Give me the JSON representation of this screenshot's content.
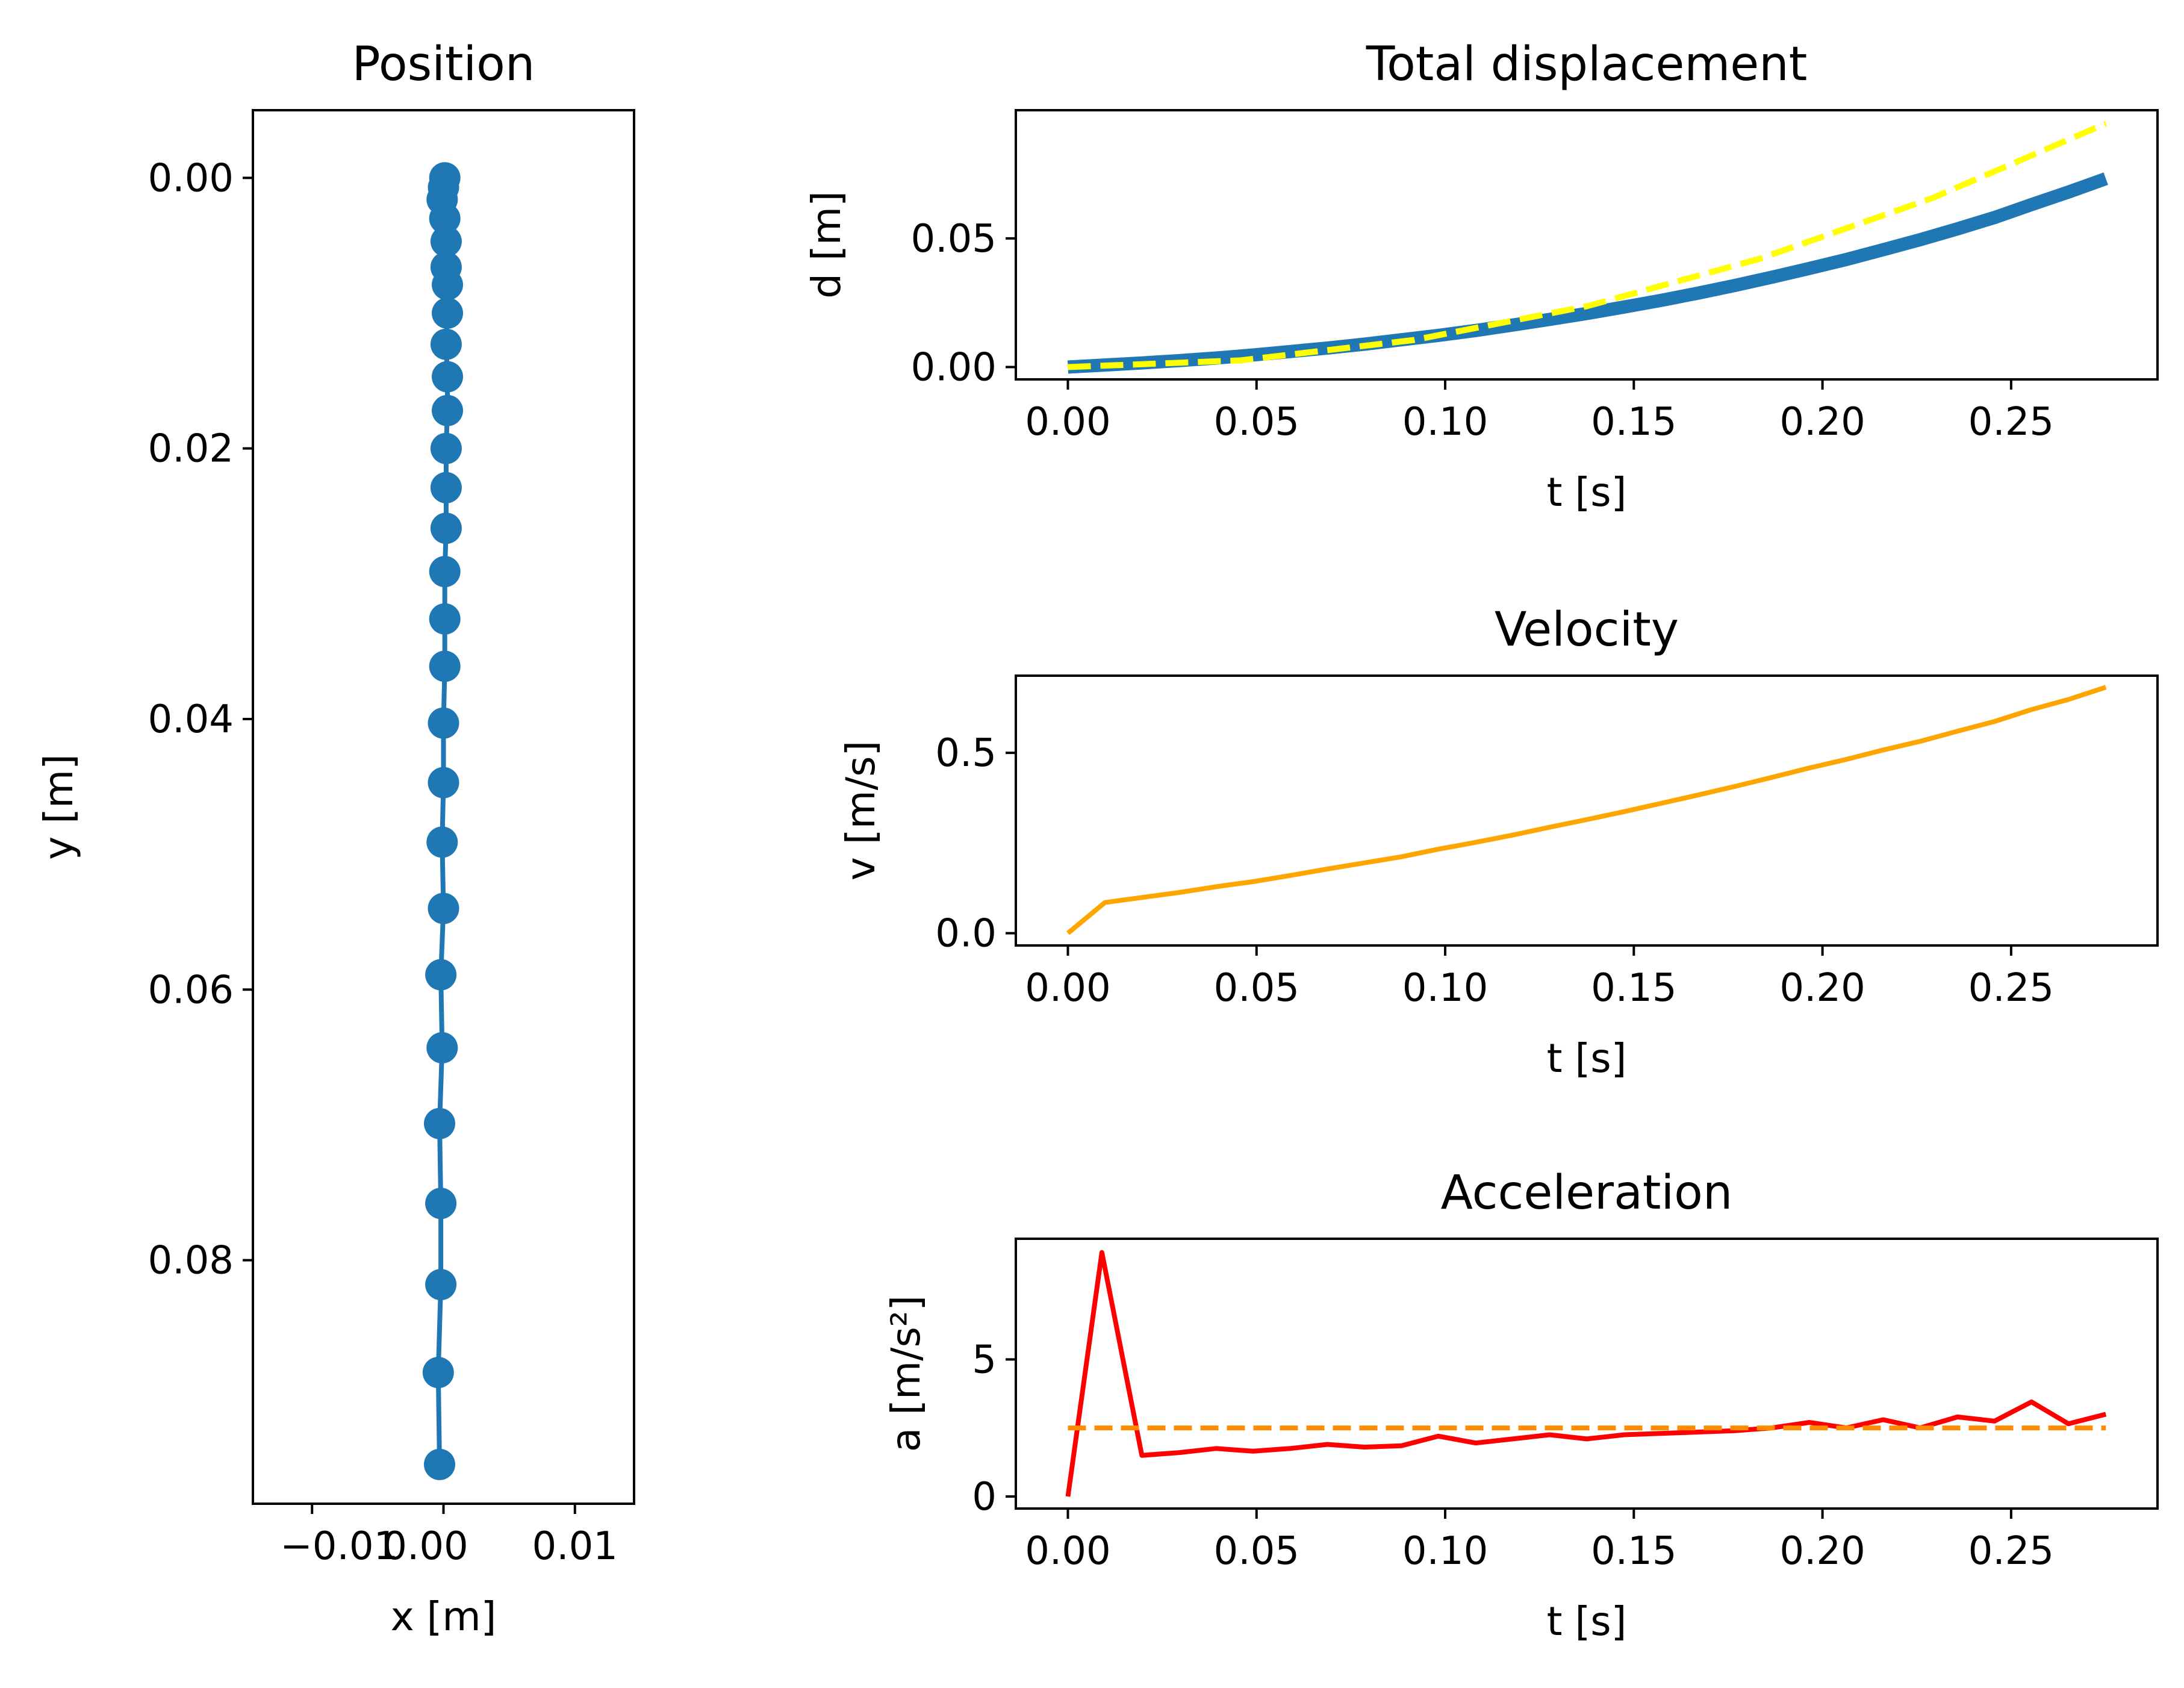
{
  "colors": {
    "background": "#ffffff",
    "axes": "#000000",
    "blue": "#1f77b4",
    "yellow": "#ffff00",
    "orange": "#ffa500",
    "red": "#ff0000",
    "dark_orange": "#ff8c00"
  },
  "chart_data": [
    {
      "type": "scatter",
      "title": "Position",
      "xlabel": "x [m]",
      "ylabel": "y [m]",
      "xlim": [
        -0.0145,
        0.0145
      ],
      "ylim": [
        0.098,
        -0.005
      ],
      "x_ticks": [
        -0.01,
        0.0,
        0.01
      ],
      "x_tick_labels": [
        "−0.01",
        "0.00",
        "0.01"
      ],
      "y_ticks": [
        0.0,
        0.02,
        0.04,
        0.06,
        0.08
      ],
      "y_tick_labels": [
        "0.00",
        "0.02",
        "0.04",
        "0.06",
        "0.08"
      ],
      "grid": false,
      "series": [
        {
          "color": "#1f77b4",
          "marker": "circle",
          "line": true,
          "x": [
            0.0001,
            0.0,
            -0.0001,
            0.0001,
            0.0002,
            0.0002,
            0.0003,
            0.0003,
            0.0002,
            0.0003,
            0.0003,
            0.0002,
            0.0002,
            0.0002,
            0.0001,
            0.0001,
            0.0001,
            0.0,
            0.0,
            -0.0001,
            0.0,
            -0.0002,
            -0.0001,
            -0.0003,
            -0.0002,
            -0.0002,
            -0.0004,
            -0.0003
          ],
          "y": [
            0.0,
            0.0007,
            0.0016,
            0.003,
            0.0047,
            0.0066,
            0.0079,
            0.01,
            0.0123,
            0.0147,
            0.0172,
            0.02,
            0.0229,
            0.0259,
            0.0291,
            0.0326,
            0.0361,
            0.0403,
            0.0447,
            0.0491,
            0.054,
            0.0589,
            0.0643,
            0.0699,
            0.0758,
            0.0818,
            0.0883,
            0.0951
          ]
        }
      ]
    },
    {
      "type": "line",
      "title": "Total displacement",
      "xlabel": "t [s]",
      "ylabel": "d [m]",
      "xlim": [
        -0.0138,
        0.2888
      ],
      "ylim": [
        -0.0048,
        0.0998
      ],
      "x_ticks": [
        0.0,
        0.05,
        0.1,
        0.15,
        0.2,
        0.25
      ],
      "x_tick_labels": [
        "0.00",
        "0.05",
        "0.10",
        "0.15",
        "0.20",
        "0.25"
      ],
      "y_ticks": [
        0.0,
        0.05
      ],
      "y_tick_labels": [
        "0.00",
        "0.05"
      ],
      "grid": false,
      "series": [
        {
          "color": "#1f77b4",
          "style": "solid",
          "x": [
            0.0,
            0.0098,
            0.0196,
            0.0295,
            0.0393,
            0.0491,
            0.0589,
            0.0688,
            0.0786,
            0.0884,
            0.0982,
            0.1081,
            0.1179,
            0.1277,
            0.1375,
            0.1474,
            0.1572,
            0.167,
            0.1768,
            0.1866,
            0.1965,
            0.2063,
            0.2161,
            0.2259,
            0.2358,
            0.2456,
            0.2554,
            0.2652,
            0.2751
          ],
          "values": [
            0.0,
            0.0008,
            0.0016,
            0.0025,
            0.0035,
            0.0047,
            0.006,
            0.0074,
            0.0089,
            0.0106,
            0.0123,
            0.0142,
            0.0163,
            0.0185,
            0.0208,
            0.0233,
            0.0259,
            0.0287,
            0.0317,
            0.0349,
            0.0383,
            0.0418,
            0.0456,
            0.0495,
            0.0537,
            0.0581,
            0.0631,
            0.068,
            0.0732
          ]
        },
        {
          "color": "#ffff00",
          "style": "dashed",
          "x": [
            0.0,
            0.0458,
            0.0917,
            0.1375,
            0.1834,
            0.2292,
            0.2751
          ],
          "values": [
            0.0,
            0.0026,
            0.0105,
            0.0236,
            0.0421,
            0.0657,
            0.0946
          ]
        }
      ]
    },
    {
      "type": "line",
      "title": "Velocity",
      "xlabel": "t [s]",
      "ylabel": "v [m/s]",
      "xlim": [
        -0.0138,
        0.2888
      ],
      "ylim": [
        -0.034,
        0.714
      ],
      "x_ticks": [
        0.0,
        0.05,
        0.1,
        0.15,
        0.2,
        0.25
      ],
      "x_tick_labels": [
        "0.00",
        "0.05",
        "0.10",
        "0.15",
        "0.20",
        "0.25"
      ],
      "y_ticks": [
        0.0,
        0.5
      ],
      "y_tick_labels": [
        "0.0",
        "0.5"
      ],
      "grid": false,
      "series": [
        {
          "color": "#ffa500",
          "style": "solid",
          "x": [
            0.0,
            0.0098,
            0.0196,
            0.0295,
            0.0393,
            0.0491,
            0.0589,
            0.0688,
            0.0786,
            0.0884,
            0.0982,
            0.1081,
            0.1179,
            0.1277,
            0.1375,
            0.1474,
            0.1572,
            0.167,
            0.1768,
            0.1866,
            0.1965,
            0.2063,
            0.2161,
            0.2259,
            0.2358,
            0.2456,
            0.2554,
            0.2652,
            0.2751
          ],
          "values": [
            0.0,
            0.085,
            0.099,
            0.113,
            0.129,
            0.143,
            0.16,
            0.178,
            0.195,
            0.212,
            0.233,
            0.252,
            0.272,
            0.294,
            0.315,
            0.337,
            0.36,
            0.383,
            0.407,
            0.432,
            0.458,
            0.482,
            0.508,
            0.532,
            0.56,
            0.587,
            0.62,
            0.648,
            0.682
          ]
        }
      ]
    },
    {
      "type": "line",
      "title": "Acceleration",
      "xlabel": "t [s]",
      "ylabel": "a [m/s²]",
      "xlim": [
        -0.0138,
        0.2888
      ],
      "ylim": [
        -0.44,
        9.4
      ],
      "x_ticks": [
        0.0,
        0.05,
        0.1,
        0.15,
        0.2,
        0.25
      ],
      "x_tick_labels": [
        "0.00",
        "0.05",
        "0.10",
        "0.15",
        "0.20",
        "0.25"
      ],
      "y_ticks": [
        0,
        5
      ],
      "y_tick_labels": [
        "0",
        "5"
      ],
      "grid": false,
      "series": [
        {
          "color": "#ff0000",
          "style": "solid",
          "x": [
            0.0,
            0.009,
            0.0196,
            0.0295,
            0.0393,
            0.0491,
            0.0589,
            0.0688,
            0.0786,
            0.0884,
            0.0982,
            0.1081,
            0.1179,
            0.1277,
            0.1375,
            0.1474,
            0.1572,
            0.167,
            0.1768,
            0.1866,
            0.1965,
            0.2063,
            0.2161,
            0.2259,
            0.2358,
            0.2456,
            0.2554,
            0.2652,
            0.2751
          ],
          "values": [
            0.0,
            8.9,
            1.5,
            1.6,
            1.75,
            1.65,
            1.75,
            1.9,
            1.8,
            1.85,
            2.2,
            1.95,
            2.1,
            2.25,
            2.1,
            2.25,
            2.3,
            2.35,
            2.4,
            2.5,
            2.7,
            2.5,
            2.8,
            2.5,
            2.9,
            2.75,
            3.45,
            2.65,
            3.0
          ]
        },
        {
          "color": "#ff8c00",
          "style": "dashed",
          "x": [
            0.0,
            0.2751
          ],
          "values": [
            2.5,
            2.5
          ]
        }
      ]
    }
  ]
}
